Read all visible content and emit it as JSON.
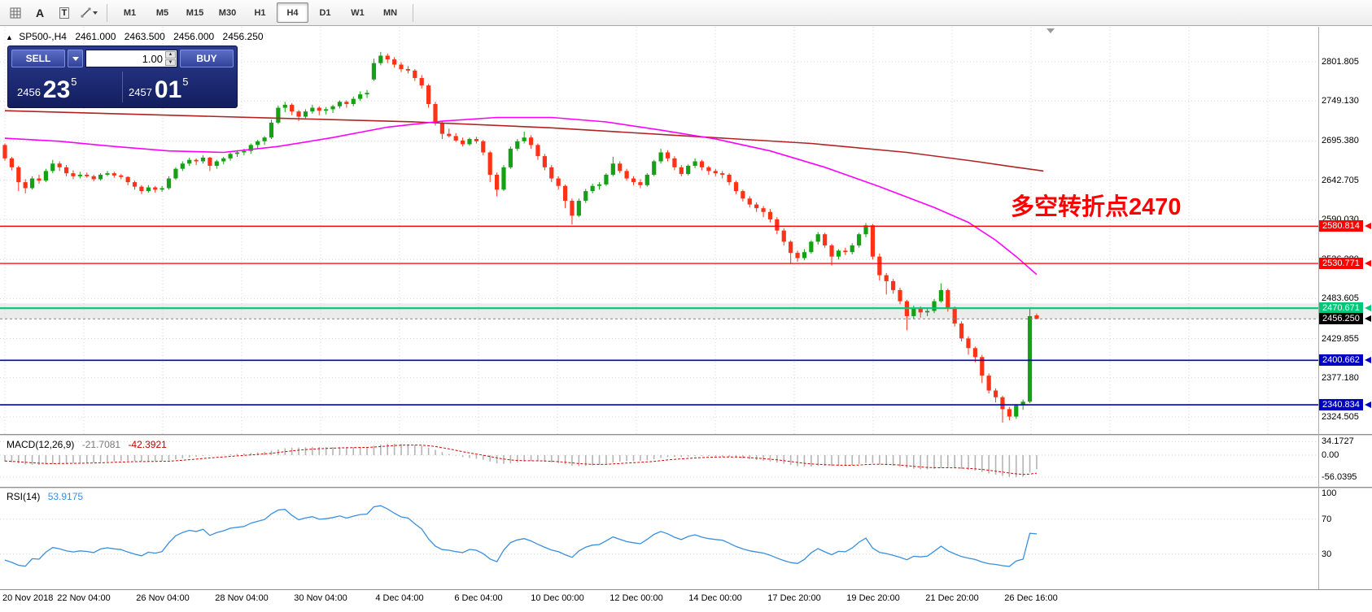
{
  "toolbar": {
    "glyph_a": "A",
    "glyph_t": "T",
    "timeframes": [
      "M1",
      "M5",
      "M15",
      "M30",
      "H1",
      "H4",
      "D1",
      "W1",
      "MN"
    ],
    "active_timeframe": "H4"
  },
  "chart": {
    "header": {
      "collapse_arrow": "▲",
      "symbol": "SP500-,H4",
      "open": "2461.000",
      "high": "2463.500",
      "low": "2456.000",
      "close": "2456.250"
    },
    "trade": {
      "sell_label": "SELL",
      "buy_label": "BUY",
      "volume": "1.00",
      "bid": {
        "small": "2456",
        "big": "23",
        "sup": "5"
      },
      "ask": {
        "small": "2457",
        "big": "01",
        "sup": "5"
      }
    },
    "annotation": {
      "text": "多空转折点2470",
      "color": "#ff0000"
    },
    "colors": {
      "up": "#14a114",
      "down": "#fd3217",
      "ma_fast": "#ff00ff",
      "ma_slow": "#b22222",
      "grid": "#d4d4d4",
      "zone": "#ebebeb",
      "current_line": "#888888"
    },
    "y_axis": [
      {
        "label": "2801.805",
        "price": 2801.805
      },
      {
        "label": "2749.130",
        "price": 2749.13
      },
      {
        "label": "2695.380",
        "price": 2695.38
      },
      {
        "label": "2642.705",
        "price": 2642.705
      },
      {
        "label": "2590.030",
        "price": 2590.03
      },
      {
        "label": "2536.280",
        "price": 2536.28
      },
      {
        "label": "2483.605",
        "price": 2483.605
      },
      {
        "label": "2429.855",
        "price": 2429.855
      },
      {
        "label": "2377.180",
        "price": 2377.18
      },
      {
        "label": "2324.505",
        "price": 2324.505
      }
    ],
    "price_lines": [
      {
        "label": "2580.814",
        "price": 2580.814,
        "color": "#ff0000",
        "width": 1.3,
        "dashed": false
      },
      {
        "label": "2530.771",
        "price": 2530.771,
        "color": "#ff0000",
        "width": 1.3,
        "dashed": false
      },
      {
        "label": "2470.671",
        "price": 2470.671,
        "color": "#00c878",
        "width": 2.2,
        "dashed": false
      },
      {
        "label": "2456.250",
        "price": 2456.25,
        "color": "#000000",
        "width": 1,
        "dashed": true
      },
      {
        "label": "2400.662",
        "price": 2400.662,
        "color": "#0000c3",
        "width": 1.6,
        "dashed": false
      },
      {
        "label": "2340.834",
        "price": 2340.834,
        "color": "#0000c3",
        "width": 1.6,
        "dashed": false
      }
    ],
    "zone": {
      "top_price": 2477.0,
      "bottom_price": 2456.25
    },
    "x_axis": [
      "20 Nov 2018",
      "22 Nov 04:00",
      "26 Nov 04:00",
      "28 Nov 04:00",
      "30 Nov 04:00",
      "4 Dec 04:00",
      "6 Dec 04:00",
      "10 Dec 00:00",
      "12 Dec 00:00",
      "14 Dec 00:00",
      "17 Dec 20:00",
      "19 Dec 20:00",
      "21 Dec 20:00",
      "26 Dec 16:00"
    ],
    "warmup_closes": [
      2780,
      2775,
      2768,
      2760,
      2752,
      2745,
      2750,
      2742,
      2735,
      2728,
      2720,
      2712,
      2705,
      2698,
      2706,
      2714,
      2722,
      2730,
      2736,
      2730,
      2722,
      2715,
      2708,
      2700,
      2694,
      2688,
      2695,
      2700,
      2696,
      2690
    ],
    "candles": [
      [
        2690,
        2692,
        2669,
        2672
      ],
      [
        2672,
        2674,
        2656,
        2660
      ],
      [
        2660,
        2662,
        2628,
        2640
      ],
      [
        2640,
        2644,
        2625,
        2632
      ],
      [
        2632,
        2648,
        2630,
        2645
      ],
      [
        2645,
        2650,
        2638,
        2642
      ],
      [
        2642,
        2658,
        2640,
        2655
      ],
      [
        2655,
        2670,
        2652,
        2665
      ],
      [
        2665,
        2668,
        2655,
        2660
      ],
      [
        2660,
        2663,
        2648,
        2652
      ],
      [
        2652,
        2656,
        2644,
        2648
      ],
      [
        2648,
        2654,
        2645,
        2650
      ],
      [
        2650,
        2653,
        2646,
        2648
      ],
      [
        2648,
        2650,
        2641,
        2644
      ],
      [
        2644,
        2652,
        2642,
        2650
      ],
      [
        2650,
        2655,
        2648,
        2652
      ],
      [
        2652,
        2654,
        2646,
        2649
      ],
      [
        2649,
        2651,
        2644,
        2647
      ],
      [
        2647,
        2648,
        2636,
        2640
      ],
      [
        2640,
        2642,
        2630,
        2634
      ],
      [
        2634,
        2636,
        2624,
        2628
      ],
      [
        2628,
        2636,
        2626,
        2633
      ],
      [
        2633,
        2635,
        2626,
        2630
      ],
      [
        2630,
        2635,
        2627,
        2632
      ],
      [
        2632,
        2648,
        2630,
        2645
      ],
      [
        2645,
        2660,
        2643,
        2658
      ],
      [
        2658,
        2668,
        2655,
        2665
      ],
      [
        2665,
        2673,
        2662,
        2670
      ],
      [
        2670,
        2672,
        2663,
        2668
      ],
      [
        2668,
        2676,
        2665,
        2673
      ],
      [
        2673,
        2674,
        2655,
        2662
      ],
      [
        2662,
        2670,
        2658,
        2668
      ],
      [
        2668,
        2674,
        2664,
        2672
      ],
      [
        2672,
        2680,
        2669,
        2678
      ],
      [
        2678,
        2683,
        2674,
        2680
      ],
      [
        2680,
        2685,
        2676,
        2682
      ],
      [
        2682,
        2692,
        2678,
        2690
      ],
      [
        2690,
        2697,
        2685,
        2695
      ],
      [
        2695,
        2702,
        2690,
        2700
      ],
      [
        2700,
        2724,
        2698,
        2720
      ],
      [
        2720,
        2743,
        2718,
        2740
      ],
      [
        2740,
        2748,
        2734,
        2744
      ],
      [
        2744,
        2746,
        2730,
        2735
      ],
      [
        2735,
        2737,
        2722,
        2728
      ],
      [
        2728,
        2738,
        2726,
        2735
      ],
      [
        2735,
        2744,
        2732,
        2740
      ],
      [
        2740,
        2742,
        2730,
        2736
      ],
      [
        2736,
        2741,
        2731,
        2738
      ],
      [
        2738,
        2744,
        2733,
        2742
      ],
      [
        2742,
        2750,
        2739,
        2748
      ],
      [
        2748,
        2750,
        2740,
        2745
      ],
      [
        2745,
        2755,
        2742,
        2752
      ],
      [
        2752,
        2762,
        2749,
        2758
      ],
      [
        2758,
        2764,
        2753,
        2760
      ],
      [
        2778,
        2806,
        2776,
        2800
      ],
      [
        2800,
        2815,
        2797,
        2810
      ],
      [
        2810,
        2813,
        2800,
        2805
      ],
      [
        2805,
        2808,
        2794,
        2798
      ],
      [
        2798,
        2801,
        2788,
        2792
      ],
      [
        2792,
        2796,
        2786,
        2790
      ],
      [
        2790,
        2792,
        2776,
        2780
      ],
      [
        2780,
        2784,
        2766,
        2770
      ],
      [
        2770,
        2772,
        2740,
        2745
      ],
      [
        2745,
        2748,
        2716,
        2720
      ],
      [
        2720,
        2722,
        2698,
        2705
      ],
      [
        2705,
        2712,
        2700,
        2702
      ],
      [
        2702,
        2706,
        2694,
        2696
      ],
      [
        2696,
        2700,
        2688,
        2691
      ],
      [
        2691,
        2700,
        2689,
        2698
      ],
      [
        2698,
        2701,
        2692,
        2695
      ],
      [
        2695,
        2697,
        2676,
        2680
      ],
      [
        2680,
        2682,
        2640,
        2650
      ],
      [
        2650,
        2653,
        2621,
        2630
      ],
      [
        2630,
        2663,
        2628,
        2660
      ],
      [
        2660,
        2688,
        2658,
        2685
      ],
      [
        2685,
        2698,
        2682,
        2695
      ],
      [
        2695,
        2708,
        2692,
        2700
      ],
      [
        2700,
        2703,
        2685,
        2690
      ],
      [
        2690,
        2692,
        2670,
        2675
      ],
      [
        2675,
        2678,
        2656,
        2660
      ],
      [
        2660,
        2663,
        2640,
        2645
      ],
      [
        2645,
        2648,
        2630,
        2635
      ],
      [
        2635,
        2637,
        2605,
        2615
      ],
      [
        2615,
        2618,
        2583,
        2595
      ],
      [
        2595,
        2618,
        2593,
        2615
      ],
      [
        2615,
        2631,
        2612,
        2628
      ],
      [
        2628,
        2638,
        2625,
        2635
      ],
      [
        2635,
        2640,
        2630,
        2637
      ],
      [
        2637,
        2652,
        2635,
        2650
      ],
      [
        2650,
        2674,
        2648,
        2665
      ],
      [
        2665,
        2668,
        2652,
        2655
      ],
      [
        2655,
        2658,
        2642,
        2645
      ],
      [
        2645,
        2648,
        2636,
        2640
      ],
      [
        2640,
        2644,
        2632,
        2636
      ],
      [
        2636,
        2652,
        2634,
        2650
      ],
      [
        2650,
        2670,
        2648,
        2668
      ],
      [
        2668,
        2685,
        2665,
        2680
      ],
      [
        2680,
        2683,
        2668,
        2672
      ],
      [
        2672,
        2675,
        2656,
        2660
      ],
      [
        2660,
        2663,
        2648,
        2651
      ],
      [
        2651,
        2664,
        2649,
        2662
      ],
      [
        2662,
        2672,
        2659,
        2668
      ],
      [
        2668,
        2670,
        2656,
        2660
      ],
      [
        2660,
        2662,
        2650,
        2655
      ],
      [
        2655,
        2658,
        2648,
        2652
      ],
      [
        2652,
        2655,
        2645,
        2650
      ],
      [
        2650,
        2652,
        2636,
        2640
      ],
      [
        2640,
        2642,
        2624,
        2628
      ],
      [
        2628,
        2630,
        2614,
        2618
      ],
      [
        2618,
        2621,
        2606,
        2610
      ],
      [
        2610,
        2613,
        2600,
        2605
      ],
      [
        2605,
        2608,
        2593,
        2600
      ],
      [
        2600,
        2604,
        2586,
        2590
      ],
      [
        2590,
        2593,
        2570,
        2575
      ],
      [
        2575,
        2578,
        2555,
        2560
      ],
      [
        2560,
        2562,
        2530,
        2545
      ],
      [
        2545,
        2548,
        2533,
        2538
      ],
      [
        2538,
        2550,
        2535,
        2546
      ],
      [
        2546,
        2562,
        2544,
        2560
      ],
      [
        2560,
        2573,
        2556,
        2570
      ],
      [
        2570,
        2572,
        2552,
        2555
      ],
      [
        2555,
        2557,
        2528,
        2540
      ],
      [
        2540,
        2550,
        2536,
        2548
      ],
      [
        2548,
        2552,
        2542,
        2546
      ],
      [
        2546,
        2558,
        2543,
        2555
      ],
      [
        2555,
        2572,
        2552,
        2570
      ],
      [
        2570,
        2585,
        2566,
        2582
      ],
      [
        2582,
        2584,
        2536,
        2540
      ],
      [
        2540,
        2544,
        2508,
        2515
      ],
      [
        2515,
        2518,
        2489,
        2507
      ],
      [
        2507,
        2510,
        2490,
        2495
      ],
      [
        2495,
        2498,
        2476,
        2480
      ],
      [
        2480,
        2482,
        2441,
        2460
      ],
      [
        2460,
        2474,
        2456,
        2470
      ],
      [
        2470,
        2473,
        2458,
        2465
      ],
      [
        2465,
        2472,
        2460,
        2467
      ],
      [
        2467,
        2483,
        2464,
        2480
      ],
      [
        2480,
        2504,
        2478,
        2495
      ],
      [
        2495,
        2497,
        2466,
        2470
      ],
      [
        2470,
        2473,
        2446,
        2450
      ],
      [
        2450,
        2453,
        2426,
        2430
      ],
      [
        2430,
        2433,
        2408,
        2417
      ],
      [
        2417,
        2419,
        2398,
        2405
      ],
      [
        2405,
        2408,
        2370,
        2380
      ],
      [
        2380,
        2383,
        2356,
        2360
      ],
      [
        2360,
        2363,
        2344,
        2351
      ],
      [
        2351,
        2353,
        2317,
        2335
      ],
      [
        2335,
        2338,
        2320,
        2325
      ],
      [
        2325,
        2342,
        2322,
        2340
      ],
      [
        2340,
        2348,
        2334,
        2345
      ],
      [
        2345,
        2470,
        2343,
        2460
      ],
      [
        2461,
        2463.5,
        2456,
        2456.25
      ]
    ],
    "ma_fast_points": [
      [
        0,
        2699
      ],
      [
        8,
        2695
      ],
      [
        16,
        2688
      ],
      [
        24,
        2682
      ],
      [
        32,
        2680
      ],
      [
        40,
        2688
      ],
      [
        48,
        2700
      ],
      [
        56,
        2714
      ],
      [
        64,
        2722
      ],
      [
        72,
        2727
      ],
      [
        80,
        2727
      ],
      [
        88,
        2721
      ],
      [
        96,
        2710
      ],
      [
        104,
        2698
      ],
      [
        112,
        2682
      ],
      [
        120,
        2660
      ],
      [
        128,
        2634
      ],
      [
        136,
        2606
      ],
      [
        141,
        2586
      ],
      [
        145,
        2562
      ],
      [
        148,
        2540
      ],
      [
        151,
        2516
      ]
    ],
    "ma_slow_points": [
      [
        0,
        2736
      ],
      [
        20,
        2731
      ],
      [
        40,
        2726
      ],
      [
        60,
        2721
      ],
      [
        80,
        2713
      ],
      [
        100,
        2702
      ],
      [
        118,
        2692
      ],
      [
        132,
        2680
      ],
      [
        142,
        2668
      ],
      [
        148,
        2660
      ],
      [
        152,
        2655
      ]
    ]
  },
  "macd": {
    "title": "MACD(12,26,9)",
    "value_main": "-21.7081",
    "value_signal": "-42.3921",
    "axis_labels": [
      "34.1727",
      "0.00",
      "-56.0395"
    ],
    "axis_values": [
      34.1727,
      0,
      -56.0395
    ],
    "colors": {
      "hist": "#b4b4b4",
      "signal": "#d40000"
    }
  },
  "rsi": {
    "title": "RSI(14)",
    "value": "53.9175",
    "axis_labels": [
      "100",
      "70",
      "30"
    ],
    "axis_values": [
      100,
      70,
      30
    ],
    "levels": [
      70,
      30
    ],
    "color": "#3a8fdd"
  }
}
